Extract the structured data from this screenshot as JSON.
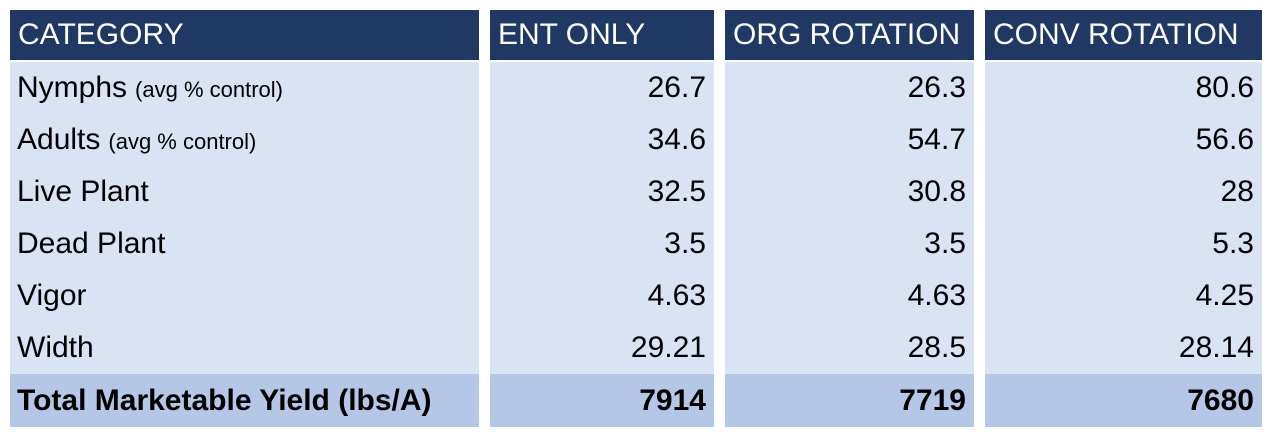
{
  "table": {
    "header": [
      "CATEGORY",
      "ENT ONLY",
      "ORG ROTATION",
      "CONV ROTATION"
    ],
    "rows": [
      {
        "label": "Nymphs",
        "note": "(avg % control)",
        "values": [
          26.7,
          26.3,
          80.6
        ]
      },
      {
        "label": "Adults",
        "note": "(avg % control)",
        "values": [
          34.6,
          54.7,
          56.6
        ]
      },
      {
        "label": "Live Plant",
        "values": [
          32.5,
          30.8,
          28
        ]
      },
      {
        "label": "Dead Plant",
        "values": [
          3.5,
          3.5,
          5.3
        ]
      },
      {
        "label": "Vigor",
        "values": [
          4.63,
          4.63,
          4.25
        ]
      },
      {
        "label": "Width",
        "values": [
          29.21,
          28.5,
          28.14
        ]
      }
    ],
    "total": {
      "label": "Total Marketable Yield (lbs/A)",
      "values": [
        7914,
        7719,
        7680
      ]
    }
  }
}
